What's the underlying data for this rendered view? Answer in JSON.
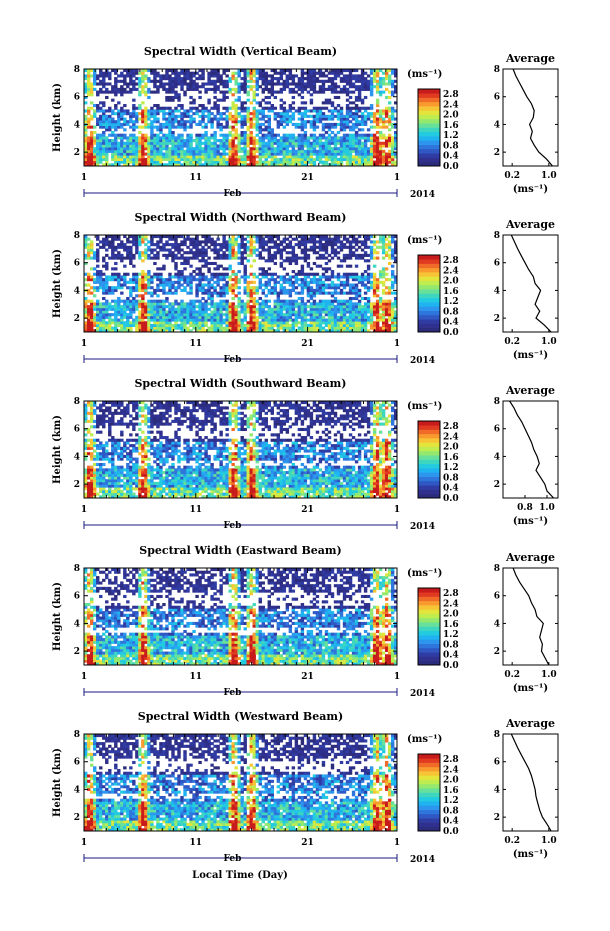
{
  "colormap": [
    "#2c2c7c",
    "#30318f",
    "#2f3ca4",
    "#2f58c4",
    "#2f76dc",
    "#2c96ee",
    "#1fb4f0",
    "#23cbe0",
    "#3fd6c0",
    "#66e09a",
    "#94e86e",
    "#bfec4e",
    "#e3e43c",
    "#f7c436",
    "#f89a2e",
    "#f06b28",
    "#e03a20",
    "#c81c1c"
  ],
  "chart_data": [
    {
      "type": "heatmap",
      "title": "Spectral Width (Vertical Beam)",
      "ylabel": "Height (km)",
      "y_ticks": [
        "2",
        "4",
        "6",
        "8"
      ],
      "ylim": [
        1,
        8
      ],
      "x_ticks": [
        "1",
        "11",
        "21",
        "1"
      ],
      "xlim_days": [
        1,
        29
      ],
      "date_axis": {
        "month": "Feb",
        "year": "2014"
      },
      "colorbar": {
        "unit": "(ms⁻¹)",
        "ticks": [
          "0.0",
          "0.4",
          "0.8",
          "1.2",
          "1.6",
          "2.0",
          "2.4",
          "2.8"
        ],
        "range": [
          0,
          3.0
        ]
      },
      "profile": {
        "title": "Average",
        "xlabel": "(ms⁻¹)",
        "x_ticks": [
          "0.2",
          "1.0"
        ],
        "y_ticks": [
          "2",
          "4",
          "6",
          "8"
        ],
        "xlim": [
          0.0,
          1.2
        ],
        "ylim": [
          1,
          8
        ],
        "heights": [
          1.0,
          1.5,
          2.0,
          2.5,
          3.0,
          3.5,
          4.0,
          4.5,
          5.0,
          5.5,
          6.0,
          6.5,
          7.0,
          7.5,
          8.0
        ],
        "values": [
          1.08,
          0.95,
          0.78,
          0.68,
          0.6,
          0.64,
          0.58,
          0.66,
          0.68,
          0.62,
          0.52,
          0.44,
          0.36,
          0.28,
          0.22
        ]
      }
    },
    {
      "type": "heatmap",
      "title": "Spectral Width (Northward Beam)",
      "ylabel": "Height (km)",
      "y_ticks": [
        "2",
        "4",
        "6",
        "8"
      ],
      "ylim": [
        1,
        8
      ],
      "x_ticks": [
        "1",
        "11",
        "21",
        "1"
      ],
      "xlim_days": [
        1,
        29
      ],
      "date_axis": {
        "month": "Feb",
        "year": "2014"
      },
      "colorbar": {
        "unit": "(ms⁻¹)",
        "ticks": [
          "0.0",
          "0.4",
          "0.8",
          "1.2",
          "1.6",
          "2.0",
          "2.4",
          "2.8"
        ],
        "range": [
          0,
          3.0
        ]
      },
      "profile": {
        "title": "Average",
        "xlabel": "(ms⁻¹)",
        "x_ticks": [
          "0.2",
          "1.0"
        ],
        "y_ticks": [
          "2",
          "4",
          "6",
          "8"
        ],
        "xlim": [
          0.0,
          1.2
        ],
        "ylim": [
          1,
          8
        ],
        "heights": [
          1.0,
          1.5,
          2.0,
          2.5,
          3.0,
          3.5,
          4.0,
          4.5,
          5.0,
          5.5,
          6.0,
          6.5,
          7.0,
          7.5,
          8.0
        ],
        "values": [
          1.05,
          0.9,
          0.72,
          0.8,
          0.7,
          0.76,
          0.82,
          0.7,
          0.66,
          0.56,
          0.48,
          0.4,
          0.32,
          0.25,
          0.18
        ]
      }
    },
    {
      "type": "heatmap",
      "title": "Spectral Width (Southward Beam)",
      "ylabel": "Height (km)",
      "y_ticks": [
        "2",
        "4",
        "6",
        "8"
      ],
      "ylim": [
        1,
        8
      ],
      "x_ticks": [
        "1",
        "11",
        "21",
        "1"
      ],
      "xlim_days": [
        1,
        29
      ],
      "date_axis": {
        "month": "Feb",
        "year": "2014"
      },
      "colorbar": {
        "unit": "(ms⁻¹)",
        "ticks": [
          "0.0",
          "0.4",
          "0.8",
          "1.2",
          "1.6",
          "2.0",
          "2.4",
          "2.8"
        ],
        "range": [
          0,
          3.0
        ]
      },
      "profile": {
        "title": "Average",
        "xlabel": "(ms⁻¹)",
        "x_ticks": [
          "0.8",
          "1.0"
        ],
        "y_ticks": [
          "2",
          "4",
          "6",
          "8"
        ],
        "xlim": [
          0.6,
          1.1
        ],
        "ylim": [
          1,
          8
        ],
        "heights": [
          1.0,
          1.5,
          2.0,
          2.5,
          3.0,
          3.5,
          4.0,
          4.5,
          5.0,
          5.5,
          6.0,
          6.5,
          7.0,
          7.5,
          8.0
        ],
        "values": [
          1.06,
          1.0,
          0.98,
          0.94,
          0.9,
          0.93,
          0.91,
          0.88,
          0.86,
          0.83,
          0.8,
          0.77,
          0.73,
          0.7,
          0.66
        ]
      }
    },
    {
      "type": "heatmap",
      "title": "Spectral Width (Eastward Beam)",
      "ylabel": "Height (km)",
      "y_ticks": [
        "2",
        "4",
        "6",
        "8"
      ],
      "ylim": [
        1,
        8
      ],
      "x_ticks": [
        "1",
        "11",
        "21",
        "1"
      ],
      "xlim_days": [
        1,
        29
      ],
      "date_axis": {
        "month": "Feb",
        "year": "2014"
      },
      "colorbar": {
        "unit": "(ms⁻¹)",
        "ticks": [
          "0.0",
          "0.4",
          "0.8",
          "1.2",
          "1.6",
          "2.0",
          "2.4",
          "2.8"
        ],
        "range": [
          0,
          3.0
        ]
      },
      "profile": {
        "title": "Average",
        "xlabel": "(ms⁻¹)",
        "x_ticks": [
          "0.2",
          "1.0"
        ],
        "y_ticks": [
          "2",
          "4",
          "6",
          "8"
        ],
        "xlim": [
          0.0,
          1.2
        ],
        "ylim": [
          1,
          8
        ],
        "heights": [
          1.0,
          1.5,
          2.0,
          2.5,
          3.0,
          3.5,
          4.0,
          4.5,
          5.0,
          5.5,
          6.0,
          6.5,
          7.0,
          7.5,
          8.0
        ],
        "values": [
          1.0,
          0.92,
          0.84,
          0.86,
          0.8,
          0.84,
          0.88,
          0.74,
          0.7,
          0.62,
          0.56,
          0.46,
          0.36,
          0.28,
          0.22
        ]
      }
    },
    {
      "type": "heatmap",
      "title": "Spectral Width (Westward Beam)",
      "ylabel": "Height (km)",
      "y_ticks": [
        "2",
        "4",
        "6",
        "8"
      ],
      "ylim": [
        1,
        8
      ],
      "x_ticks": [
        "1",
        "11",
        "21",
        "1"
      ],
      "xlim_days": [
        1,
        29
      ],
      "date_axis": {
        "month": "Feb",
        "year": "2014"
      },
      "colorbar": {
        "unit": "(ms⁻¹)",
        "ticks": [
          "0.0",
          "0.4",
          "0.8",
          "1.2",
          "1.6",
          "2.0",
          "2.4",
          "2.8"
        ],
        "range": [
          0,
          3.0
        ]
      },
      "profile": {
        "title": "Average",
        "xlabel": "(ms⁻¹)",
        "x_ticks": [
          "0.2",
          "1.0"
        ],
        "y_ticks": [
          "2",
          "4",
          "6",
          "8"
        ],
        "xlim": [
          0.0,
          1.2
        ],
        "ylim": [
          1,
          8
        ],
        "heights": [
          1.0,
          1.5,
          2.0,
          2.5,
          3.0,
          3.5,
          4.0,
          4.5,
          5.0,
          5.5,
          6.0,
          6.5,
          7.0,
          7.5,
          8.0
        ],
        "values": [
          1.05,
          0.96,
          0.86,
          0.8,
          0.76,
          0.72,
          0.7,
          0.66,
          0.62,
          0.56,
          0.48,
          0.4,
          0.32,
          0.25,
          0.18
        ]
      }
    }
  ],
  "xlabel_bottom": "Local Time (Day)"
}
